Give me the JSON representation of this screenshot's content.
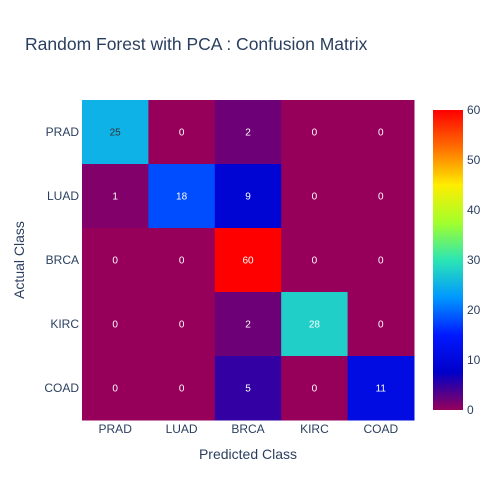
{
  "chart_data": {
    "type": "heatmap",
    "title": "Random Forest with PCA : Confusion Matrix",
    "xlabel": "Predicted Class",
    "ylabel": "Actual Class",
    "x_categories": [
      "PRAD",
      "LUAD",
      "BRCA",
      "KIRC",
      "COAD"
    ],
    "y_categories": [
      "PRAD",
      "LUAD",
      "BRCA",
      "KIRC",
      "COAD"
    ],
    "z": [
      [
        25,
        0,
        2,
        0,
        0
      ],
      [
        1,
        18,
        9,
        0,
        0
      ],
      [
        0,
        0,
        60,
        0,
        0
      ],
      [
        0,
        0,
        2,
        28,
        0
      ],
      [
        0,
        0,
        5,
        0,
        11
      ]
    ],
    "colorscale": "rainbow",
    "zmin": 0,
    "zmax": 60,
    "colorbar_ticks": [
      0,
      10,
      20,
      30,
      40,
      50,
      60
    ]
  }
}
